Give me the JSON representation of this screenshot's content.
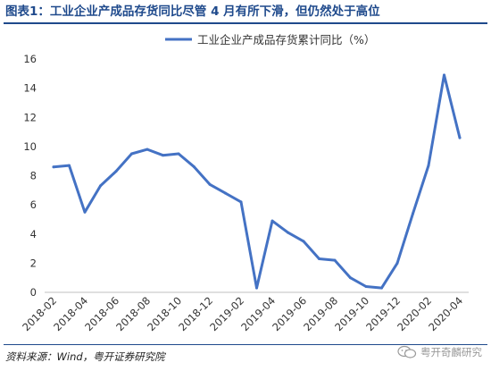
{
  "figure": {
    "title": "图表1：工业企业产成品存货同比尽管 4 月有所下滑，但仍然处于高位",
    "source": "资料来源：Wind，粤开证券研究院",
    "watermark": "粤开奇麟研究"
  },
  "colors": {
    "series": "#4472c4",
    "title": "#1f4a8c"
  },
  "icons": [
    "wechat-icon"
  ],
  "chart_data": {
    "type": "line",
    "title": "",
    "xlabel": "",
    "ylabel": "",
    "ylim": [
      0,
      16
    ],
    "yticks": [
      0,
      2,
      4,
      6,
      8,
      10,
      12,
      14,
      16
    ],
    "grid": false,
    "legend_position": "top-center",
    "x": [
      "2018-02",
      "2018-03",
      "2018-04",
      "2018-05",
      "2018-06",
      "2018-07",
      "2018-08",
      "2018-09",
      "2018-10",
      "2018-11",
      "2018-12",
      "2019-01",
      "2019-02",
      "2019-03",
      "2019-04",
      "2019-05",
      "2019-06",
      "2019-07",
      "2019-08",
      "2019-09",
      "2019-10",
      "2019-11",
      "2019-12",
      "2020-01",
      "2020-02",
      "2020-03",
      "2020-04"
    ],
    "xtick_labels": [
      "2018-02",
      "2018-04",
      "2018-06",
      "2018-08",
      "2018-10",
      "2018-12",
      "2019-02",
      "2019-04",
      "2019-06",
      "2019-08",
      "2019-10",
      "2019-12",
      "2020-02",
      "2020-04"
    ],
    "series": [
      {
        "name": "工业企业产成品存货累计同比（%）",
        "values": [
          8.6,
          8.7,
          5.5,
          7.3,
          8.3,
          9.5,
          9.8,
          9.4,
          9.5,
          8.6,
          7.4,
          6.8,
          6.2,
          0.3,
          4.9,
          4.1,
          3.5,
          2.3,
          2.2,
          1.0,
          0.4,
          0.3,
          2.0,
          5.4,
          8.7,
          14.9,
          10.6
        ]
      }
    ]
  }
}
